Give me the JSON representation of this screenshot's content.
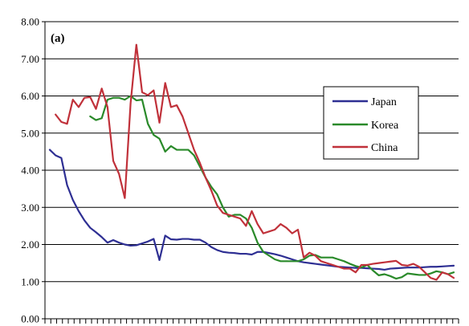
{
  "chart_data": {
    "type": "line",
    "panel_label": "(a)",
    "title": "",
    "xlabel": "",
    "ylabel": "",
    "ylim": [
      0,
      8
    ],
    "yticks": [
      "0.00",
      "1.00",
      "2.00",
      "3.00",
      "4.00",
      "5.00",
      "6.00",
      "7.00",
      "8.00"
    ],
    "grid": "horizontal",
    "legend_position": "right",
    "x_count": 71,
    "series": [
      {
        "name": "Japan",
        "color": "#2e2f93",
        "values": [
          4.55,
          4.4,
          4.33,
          3.6,
          3.2,
          2.9,
          2.65,
          2.45,
          2.33,
          2.2,
          2.05,
          2.12,
          2.05,
          2.0,
          1.97,
          1.98,
          2.03,
          2.08,
          2.15,
          1.58,
          2.24,
          2.14,
          2.13,
          2.15,
          2.15,
          2.13,
          2.13,
          2.05,
          1.93,
          1.85,
          1.8,
          1.78,
          1.77,
          1.75,
          1.75,
          1.73,
          1.8,
          1.8,
          1.77,
          1.74,
          1.7,
          1.65,
          1.6,
          1.55,
          1.52,
          1.5,
          1.48,
          1.46,
          1.44,
          1.42,
          1.4,
          1.39,
          1.38,
          1.37,
          1.37,
          1.36,
          1.35,
          1.34,
          1.32,
          1.35,
          1.36,
          1.37,
          1.38,
          1.38,
          1.38,
          1.39,
          1.4,
          1.4,
          1.41,
          1.42,
          1.43
        ]
      },
      {
        "name": "Korea",
        "color": "#2a8a2a",
        "values": [
          null,
          null,
          null,
          null,
          null,
          null,
          null,
          5.45,
          5.35,
          5.4,
          5.9,
          5.95,
          5.95,
          5.9,
          6.0,
          5.88,
          5.9,
          5.25,
          4.95,
          4.85,
          4.5,
          4.65,
          4.55,
          4.55,
          4.55,
          4.4,
          4.1,
          3.8,
          3.55,
          3.35,
          3.0,
          2.75,
          2.8,
          2.8,
          2.7,
          2.45,
          2.05,
          1.8,
          1.7,
          1.6,
          1.55,
          1.55,
          1.55,
          1.55,
          1.6,
          1.7,
          1.72,
          1.65,
          1.65,
          1.65,
          1.6,
          1.55,
          1.48,
          1.42,
          1.38,
          1.45,
          1.3,
          1.17,
          1.2,
          1.15,
          1.08,
          1.12,
          1.22,
          1.2,
          1.18,
          1.18,
          1.22,
          1.28,
          1.25,
          1.2,
          1.25
        ]
      },
      {
        "name": "China",
        "color": "#c0313a",
        "values": [
          null,
          5.5,
          5.3,
          5.25,
          5.9,
          5.7,
          5.95,
          5.97,
          5.65,
          6.2,
          5.7,
          4.25,
          3.9,
          3.25,
          5.8,
          7.38,
          6.1,
          6.02,
          6.15,
          5.28,
          6.35,
          5.7,
          5.75,
          5.45,
          5.0,
          4.55,
          4.2,
          3.8,
          3.45,
          3.05,
          2.85,
          2.8,
          2.75,
          2.7,
          2.5,
          2.9,
          2.55,
          2.3,
          2.35,
          2.4,
          2.55,
          2.45,
          2.3,
          2.4,
          1.65,
          1.78,
          1.7,
          1.55,
          1.5,
          1.45,
          1.4,
          1.35,
          1.35,
          1.25,
          1.45,
          1.45,
          1.48,
          1.5,
          1.52,
          1.54,
          1.56,
          1.45,
          1.43,
          1.48,
          1.4,
          1.25,
          1.1,
          1.05,
          1.25,
          1.2,
          1.1
        ]
      }
    ]
  }
}
